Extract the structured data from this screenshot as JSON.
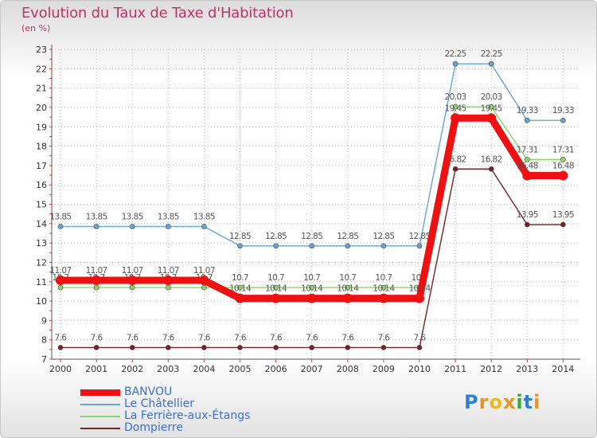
{
  "header": {
    "title": "Evolution du Taux de Taxe d'Habitation",
    "subtitle": "(en %)"
  },
  "logo": {
    "text": "Proxiti"
  },
  "chart_data": {
    "type": "line",
    "title": "Evolution du Taux de Taxe d'Habitation",
    "ylabel": "(en %)",
    "xlabel": "",
    "ylim": [
      7,
      23
    ],
    "yticks": [
      7,
      8,
      9,
      10,
      11,
      12,
      13,
      14,
      15,
      16,
      17,
      18,
      19,
      20,
      21,
      22,
      23
    ],
    "categories": [
      "2000",
      "2001",
      "2002",
      "2003",
      "2004",
      "2005",
      "2006",
      "2007",
      "2008",
      "2009",
      "2010",
      "2011",
      "2012",
      "2013",
      "2014"
    ],
    "grid": true,
    "legend_position": "bottom-left",
    "series": [
      {
        "name": "Le Châtellier",
        "color": "#6aa3d5",
        "values": [
          13.85,
          13.85,
          13.85,
          13.85,
          13.85,
          12.85,
          12.85,
          12.85,
          12.85,
          12.85,
          12.85,
          22.25,
          22.25,
          19.33,
          19.33
        ],
        "labels": [
          "13.85",
          "13.85",
          "13.85",
          "13.85",
          "13.85",
          "12.85",
          "12.85",
          "12.85",
          "12.85",
          "12.85",
          "12.85",
          "22.25",
          "22.25",
          "19.33",
          "19.33"
        ]
      },
      {
        "name": "La Ferrière-aux-Étangs",
        "color": "#8cd46a",
        "values": [
          10.7,
          10.7,
          10.7,
          10.7,
          10.7,
          10.7,
          10.7,
          10.7,
          10.7,
          10.7,
          10.7,
          20.03,
          20.03,
          17.31,
          17.31
        ],
        "labels": [
          "10.7",
          "10.7",
          "10.7",
          "10.7",
          "10.7",
          "10.7",
          "10.7",
          "10.7",
          "10.7",
          "10.7",
          "10.7",
          "20.03",
          "20.03",
          "17.31",
          "17.31"
        ]
      },
      {
        "name": "Dompierre",
        "color": "#7a2222",
        "values": [
          7.6,
          7.6,
          7.6,
          7.6,
          7.6,
          7.6,
          7.6,
          7.6,
          7.6,
          7.6,
          7.6,
          16.82,
          16.82,
          13.95,
          13.95
        ],
        "labels": [
          "7.6",
          "7.6",
          "7.6",
          "7.6",
          "7.6",
          "7.6",
          "7.6",
          "7.6",
          "7.6",
          "7.6",
          "7.6",
          "16.82",
          "16.82",
          "13.95",
          "13.95"
        ]
      },
      {
        "name": "BANVOU",
        "color": "#ee1111",
        "values": [
          11.07,
          11.07,
          11.07,
          11.07,
          11.07,
          10.14,
          10.14,
          10.14,
          10.14,
          10.14,
          10.14,
          19.45,
          19.45,
          16.48,
          16.48
        ],
        "labels": [
          "11.07",
          "11.07",
          "11.07",
          "11.07",
          "11.07",
          "10.14",
          "10.14",
          "10.14",
          "10.14",
          "10.14",
          "10.14",
          "19.45",
          "19.45",
          "16.48",
          "16.48"
        ]
      }
    ]
  },
  "legend": {
    "items": [
      {
        "label": "BANVOU",
        "color": "#ee1111",
        "thick": true
      },
      {
        "label": "Le Châtellier",
        "color": "#6aa3d5",
        "thick": false
      },
      {
        "label": "La Ferrière-aux-Étangs",
        "color": "#8cd46a",
        "thick": false
      },
      {
        "label": "Dompierre",
        "color": "#7a2222",
        "thick": false
      }
    ]
  }
}
